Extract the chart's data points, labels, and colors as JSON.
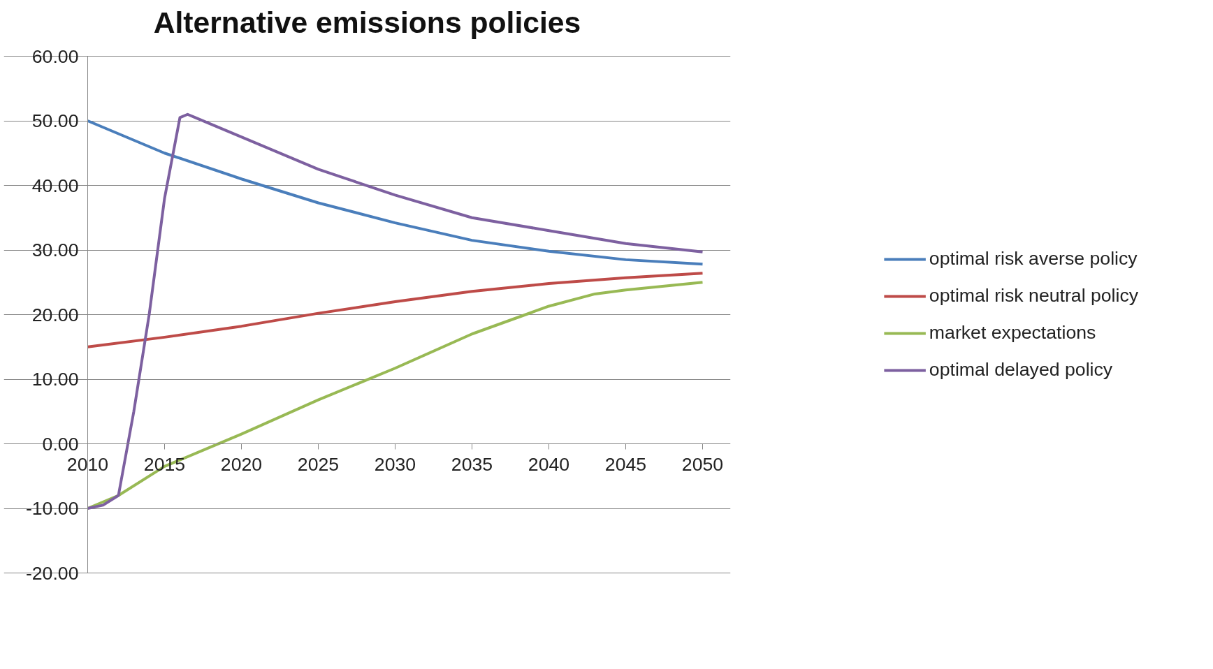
{
  "chart_data": {
    "type": "line",
    "title": "Alternative emissions policies",
    "xlim": [
      2010,
      2050
    ],
    "xticks": [
      2010,
      2015,
      2020,
      2025,
      2030,
      2035,
      2040,
      2045,
      2050
    ],
    "ylim": [
      -20,
      60
    ],
    "yticks": [
      {
        "value": -20,
        "label": "-20.00"
      },
      {
        "value": -10,
        "label": "-10.00"
      },
      {
        "value": 0,
        "label": "0.00"
      },
      {
        "value": 10,
        "label": "10.00"
      },
      {
        "value": 20,
        "label": "20.00"
      },
      {
        "value": 30,
        "label": "30.00"
      },
      {
        "value": 40,
        "label": "40.00"
      },
      {
        "value": 50,
        "label": "50.00"
      },
      {
        "value": 60,
        "label": "60.00"
      }
    ],
    "grid": "y",
    "legend": "right",
    "marker": "none",
    "line_style": "solid",
    "series": [
      {
        "name": "optimal risk averse policy",
        "color": "#4a7ebb",
        "x": [
          2010,
          2015,
          2020,
          2025,
          2030,
          2035,
          2040,
          2045,
          2050
        ],
        "values": [
          50,
          45,
          41,
          37.3,
          34.2,
          31.5,
          29.8,
          28.5,
          27.8
        ]
      },
      {
        "name": "optimal risk neutral policy",
        "color": "#be4b48",
        "x": [
          2010,
          2015,
          2020,
          2025,
          2030,
          2035,
          2040,
          2045,
          2050
        ],
        "values": [
          15,
          16.5,
          18.2,
          20.2,
          22,
          23.6,
          24.8,
          25.7,
          26.4
        ]
      },
      {
        "name": "market expectations",
        "color": "#98b954",
        "x": [
          2010,
          2012,
          2015,
          2018,
          2020,
          2025,
          2030,
          2035,
          2040,
          2043,
          2045,
          2050
        ],
        "values": [
          -10,
          -8,
          -3.5,
          -0.5,
          1.5,
          6.8,
          11.7,
          17,
          21.3,
          23.2,
          23.8,
          25
        ]
      },
      {
        "name": "optimal delayed policy",
        "color": "#7d60a0",
        "x": [
          2010,
          2011,
          2012,
          2013,
          2014,
          2015,
          2016,
          2016.5,
          2017,
          2018,
          2020,
          2025,
          2030,
          2035,
          2040,
          2045,
          2050
        ],
        "values": [
          -10,
          -9.5,
          -8,
          5,
          20,
          38,
          50.5,
          51,
          50.5,
          49.5,
          47.5,
          42.5,
          38.5,
          35,
          33,
          31,
          29.7
        ]
      }
    ]
  }
}
